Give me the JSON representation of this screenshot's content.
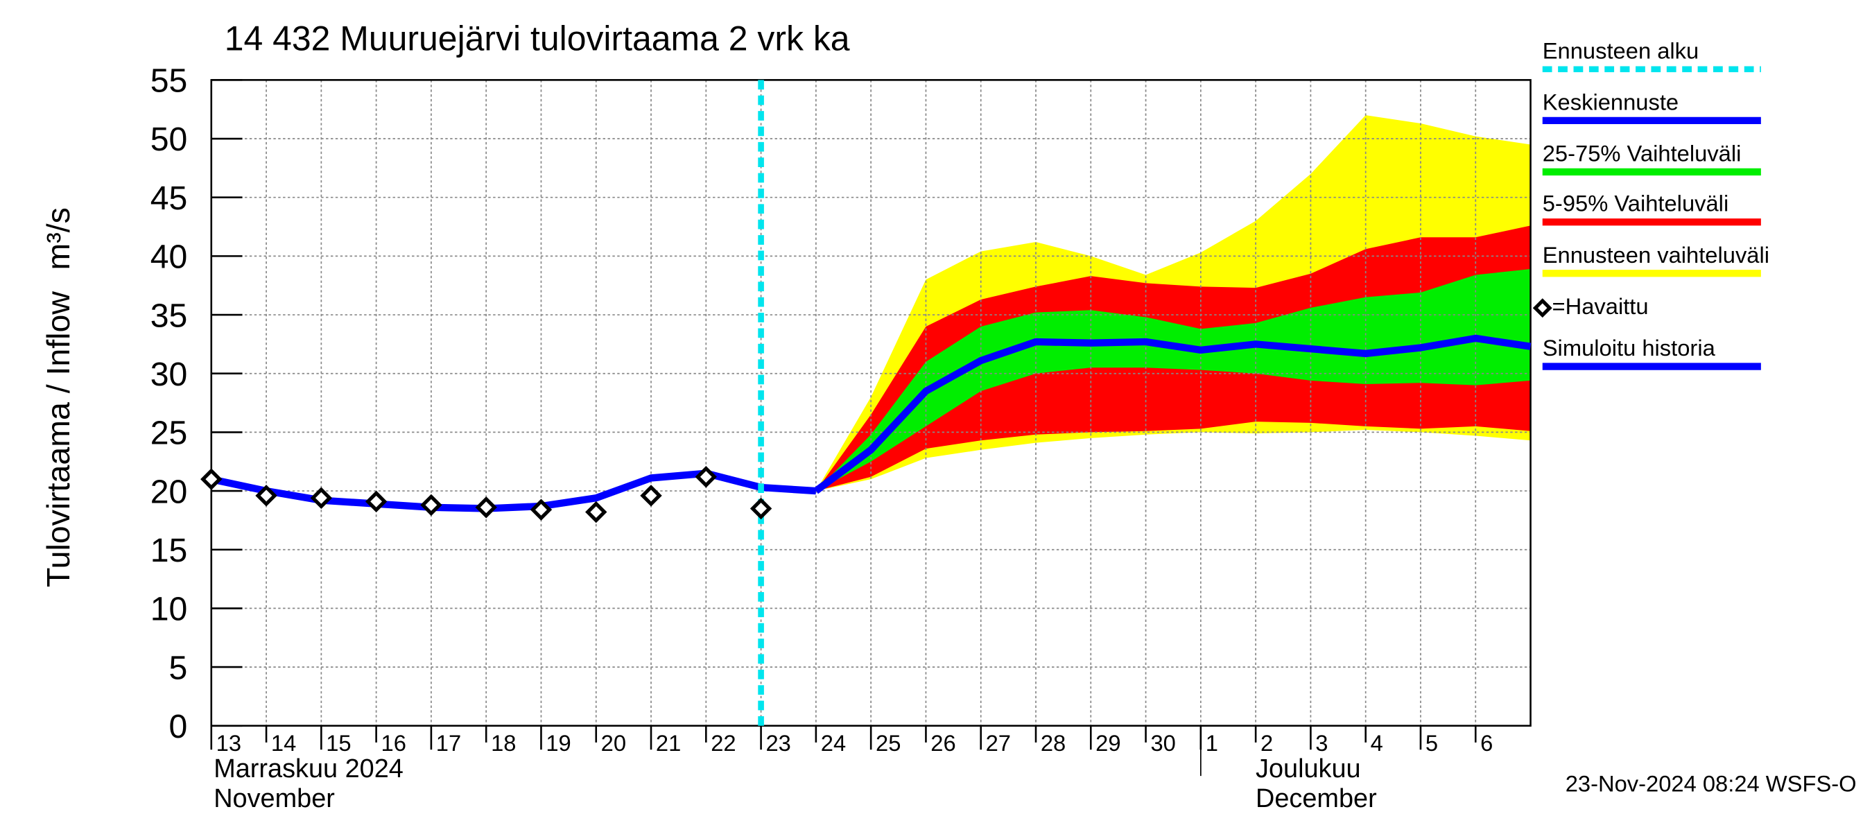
{
  "chart_data": {
    "type": "band-line",
    "title": "14 432 Muuruejärvi tulovirtaama 2 vrk ka",
    "y_label": [
      "Tulovirtaama / Inflow",
      "m³/s"
    ],
    "footer": "23-Nov-2024 08:24 WSFS-O",
    "xlim": [
      0,
      24
    ],
    "xticks": [
      {
        "value": 0,
        "label": "13"
      },
      {
        "value": 1,
        "label": "14"
      },
      {
        "value": 2,
        "label": "15"
      },
      {
        "value": 3,
        "label": "16"
      },
      {
        "value": 4,
        "label": "17"
      },
      {
        "value": 5,
        "label": "18"
      },
      {
        "value": 6,
        "label": "19"
      },
      {
        "value": 7,
        "label": "20"
      },
      {
        "value": 8,
        "label": "21"
      },
      {
        "value": 9,
        "label": "22"
      },
      {
        "value": 10,
        "label": "23"
      },
      {
        "value": 11,
        "label": "24"
      },
      {
        "value": 12,
        "label": "25"
      },
      {
        "value": 13,
        "label": "26"
      },
      {
        "value": 14,
        "label": "27"
      },
      {
        "value": 15,
        "label": "28"
      },
      {
        "value": 16,
        "label": "29"
      },
      {
        "value": 17,
        "label": "30"
      },
      {
        "value": 18,
        "label": "1"
      },
      {
        "value": 19,
        "label": "2"
      },
      {
        "value": 20,
        "label": "3"
      },
      {
        "value": 21,
        "label": "4"
      },
      {
        "value": 22,
        "label": "5"
      },
      {
        "value": 23,
        "label": "6"
      }
    ],
    "months": [
      {
        "value": 0,
        "label": [
          "Marraskuu 2024",
          "November"
        ]
      },
      {
        "value": 18,
        "label": [
          "Joulukuu",
          "December"
        ]
      }
    ],
    "ylim": [
      0,
      55
    ],
    "yticks": [
      0,
      5,
      10,
      15,
      20,
      25,
      30,
      35,
      40,
      45,
      50,
      55
    ],
    "grid": true,
    "forecast_start": {
      "name": "Ennusteen alku",
      "x": 10,
      "color": "#00e5ee"
    },
    "bands": [
      {
        "name": "Ennusteen vaihteluväli",
        "color": "#ffff00",
        "x": [
          11,
          12,
          13,
          14,
          15,
          16,
          17,
          18,
          19,
          20,
          21,
          22,
          23,
          24
        ],
        "high": [
          20,
          28,
          38,
          40.4,
          41.2,
          40,
          38.4,
          40.3,
          43,
          47,
          52,
          51.3,
          50.2,
          49.5
        ],
        "low": [
          20,
          21,
          22.8,
          23.5,
          24.1,
          24.5,
          24.8,
          25,
          24.9,
          25,
          25.2,
          25,
          24.7,
          24.3
        ]
      },
      {
        "name": "5-95% Vaihteluväli",
        "color": "#ff0000",
        "x": [
          11,
          12,
          13,
          14,
          15,
          16,
          17,
          18,
          19,
          20,
          21,
          22,
          23,
          24
        ],
        "high": [
          20,
          26.5,
          34,
          36.3,
          37.4,
          38.3,
          37.7,
          37.4,
          37.3,
          38.5,
          40.6,
          41.6,
          41.6,
          42.6
        ],
        "low": [
          20,
          21.2,
          23.6,
          24.3,
          24.8,
          25,
          25.1,
          25.3,
          25.9,
          25.8,
          25.5,
          25.3,
          25.5,
          25.1
        ]
      },
      {
        "name": "25-75% Vaihteluväli",
        "color": "#00ee00",
        "x": [
          11,
          12,
          13,
          14,
          15,
          16,
          17,
          18,
          19,
          20,
          21,
          22,
          23,
          24
        ],
        "high": [
          20,
          24.8,
          31,
          34,
          35.2,
          35.4,
          34.8,
          33.8,
          34.3,
          35.6,
          36.5,
          36.9,
          38.4,
          38.9
        ],
        "low": [
          20,
          22.5,
          25.5,
          28.5,
          30,
          30.5,
          30.5,
          30.3,
          30,
          29.4,
          29.1,
          29.2,
          29,
          29.4
        ]
      }
    ],
    "series": [
      {
        "name": "Keskiennuste",
        "color": "#0000ff",
        "x": [
          11,
          12,
          13,
          14,
          15,
          16,
          17,
          18,
          19,
          20,
          21,
          22,
          23,
          24
        ],
        "values": [
          20,
          23.5,
          28.5,
          31.1,
          32.7,
          32.6,
          32.7,
          32,
          32.5,
          32.1,
          31.7,
          32.2,
          33,
          32.3
        ]
      },
      {
        "name": "Simuloitu historia",
        "color": "#0000ff",
        "x": [
          0,
          1,
          2,
          3,
          4,
          5,
          6,
          7,
          8,
          9,
          10,
          11
        ],
        "values": [
          21,
          20,
          19.2,
          18.9,
          18.6,
          18.5,
          18.7,
          19.4,
          21.1,
          21.5,
          20.3,
          20
        ]
      }
    ],
    "observed": {
      "name": "=Havaittu",
      "x": [
        0,
        1,
        2,
        3,
        4,
        5,
        6,
        7,
        8,
        9,
        10
      ],
      "values": [
        21,
        19.6,
        19.4,
        19.1,
        18.8,
        18.6,
        18.4,
        18.2,
        19.6,
        21.2,
        18.5
      ]
    },
    "legend_order": [
      "forecast_start",
      "series.0",
      "bands.2",
      "bands.1",
      "bands.0",
      "observed",
      "series.1"
    ]
  }
}
